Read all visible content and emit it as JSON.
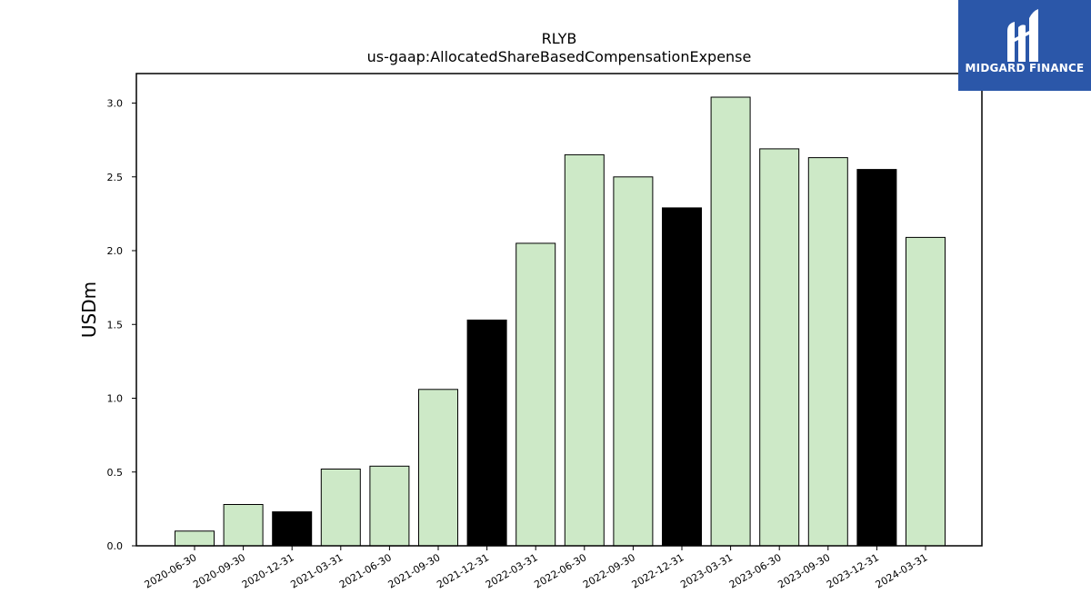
{
  "chart_data": {
    "type": "bar",
    "title": "RLYB",
    "subtitle": "us-gaap:AllocatedShareBasedCompensationExpense",
    "ylabel": "USDm",
    "xlabel": "",
    "ylim": [
      0,
      3.2
    ],
    "yticks": [
      "0.0",
      "0.5",
      "1.0",
      "1.5",
      "2.0",
      "2.5",
      "3.0"
    ],
    "grid": false,
    "categories": [
      "2020-06-30",
      "2020-09-30",
      "2020-12-31",
      "2021-03-31",
      "2021-06-30",
      "2021-09-30",
      "2021-12-31",
      "2022-03-31",
      "2022-06-30",
      "2022-09-30",
      "2022-12-31",
      "2023-03-31",
      "2023-06-30",
      "2023-09-30",
      "2023-12-31",
      "2024-03-31"
    ],
    "values": [
      0.1,
      0.28,
      0.23,
      0.52,
      0.54,
      1.06,
      1.53,
      2.05,
      2.65,
      2.5,
      2.29,
      3.04,
      2.69,
      2.63,
      2.55,
      2.09
    ],
    "bar_colors": [
      "#cde9c7",
      "#cde9c7",
      "#000000",
      "#cde9c7",
      "#cde9c7",
      "#cde9c7",
      "#000000",
      "#cde9c7",
      "#cde9c7",
      "#cde9c7",
      "#000000",
      "#cde9c7",
      "#cde9c7",
      "#cde9c7",
      "#000000",
      "#cde9c7"
    ],
    "colors": {
      "light_bar": "#cde9c7",
      "dark_bar": "#000000",
      "logo_bg": "#2b57a9"
    }
  },
  "logo": {
    "text": "MIDGARD FINANCE",
    "icon": "midgard-logo-icon"
  }
}
